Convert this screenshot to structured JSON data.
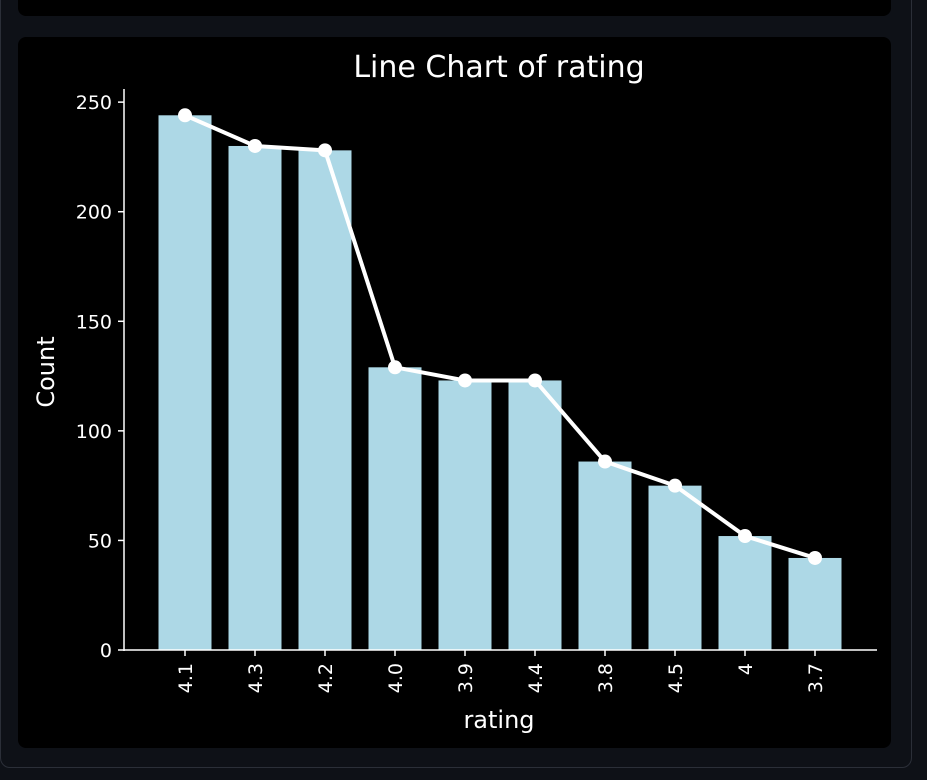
{
  "chart_data": {
    "type": "bar",
    "title": "Line Chart of rating",
    "xlabel": "rating",
    "ylabel": "Count",
    "categories": [
      "4.1",
      "4.3",
      "4.2",
      "4.0",
      "3.9",
      "4.4",
      "3.8",
      "4.5",
      "4",
      "3.7"
    ],
    "series": [
      {
        "type": "bar",
        "values": [
          244,
          230,
          228,
          129,
          123,
          123,
          86,
          75,
          52,
          42
        ]
      },
      {
        "type": "line",
        "values": [
          244,
          230,
          228,
          129,
          123,
          123,
          86,
          75,
          52,
          42
        ]
      }
    ],
    "ylim": [
      0,
      256
    ],
    "yticks": [
      0,
      50,
      100,
      150,
      200,
      250
    ],
    "grid": false,
    "colors": {
      "bar": "#add8e6",
      "line": "#ffffff",
      "background": "#000000",
      "page": "#0e1117"
    }
  }
}
